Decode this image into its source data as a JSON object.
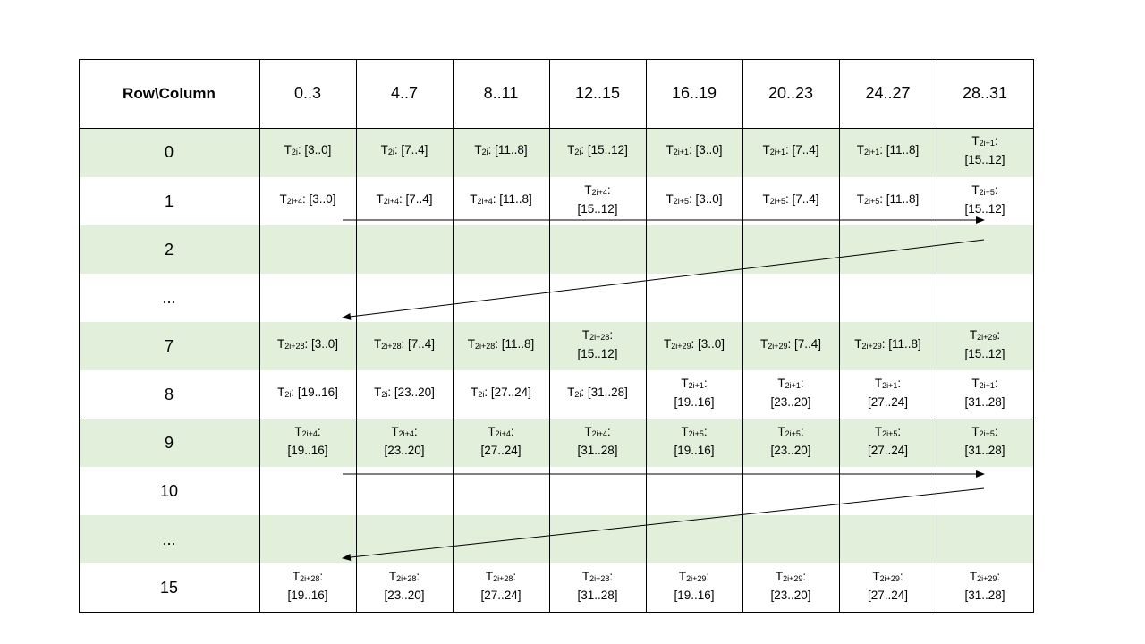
{
  "header": {
    "corner": "Row\\Column",
    "columns": [
      "0..3",
      "4..7",
      "8..11",
      "12..15",
      "16..19",
      "20..23",
      "24..27",
      "28..31"
    ]
  },
  "colors": {
    "green_row": "#e2efda",
    "white_row": "#ffffff",
    "line": "#000000"
  },
  "rows": [
    {
      "label": "0",
      "shaded": true,
      "cells": [
        [
          "2i",
          ": [3..0]",
          false
        ],
        [
          "2i",
          ": [7..4]",
          false
        ],
        [
          "2i",
          ": [11..8]",
          false
        ],
        [
          "2i",
          ": [15..12]",
          false
        ],
        [
          "2i+1",
          ": [3..0]",
          false
        ],
        [
          "2i+1",
          ": [7..4]",
          false
        ],
        [
          "2i+1",
          ": [11..8]",
          false
        ],
        [
          "2i+1",
          ": [15..12]",
          true
        ]
      ]
    },
    {
      "label": "1",
      "shaded": false,
      "cells": [
        [
          "2i+4",
          ": [3..0]",
          false
        ],
        [
          "2i+4",
          ": [7..4]",
          false
        ],
        [
          "2i+4",
          ": [11..8]",
          false
        ],
        [
          "2i+4",
          ": [15..12]",
          true
        ],
        [
          "2i+5",
          ": [3..0]",
          false
        ],
        [
          "2i+5",
          ": [7..4]",
          false
        ],
        [
          "2i+5",
          ": [11..8]",
          false
        ],
        [
          "2i+5",
          ": [15..12]",
          true
        ]
      ]
    },
    {
      "label": "2",
      "shaded": true,
      "cells": []
    },
    {
      "label": "...",
      "shaded": false,
      "cells": []
    },
    {
      "label": "7",
      "shaded": true,
      "cells": [
        [
          "2i+28",
          ": [3..0]",
          false
        ],
        [
          "2i+28",
          ": [7..4]",
          false
        ],
        [
          "2i+28",
          ": [11..8]",
          false
        ],
        [
          "2i+28",
          ": [15..12]",
          true
        ],
        [
          "2i+29",
          ": [3..0]",
          false
        ],
        [
          "2i+29",
          ": [7..4]",
          false
        ],
        [
          "2i+29",
          ": [11..8]",
          false
        ],
        [
          "2i+29",
          ": [15..12]",
          true
        ]
      ]
    },
    {
      "label": "8",
      "shaded": false,
      "cells": [
        [
          "2i",
          ": [19..16]",
          false
        ],
        [
          "2i",
          ": [23..20]",
          false
        ],
        [
          "2i",
          ": [27..24]",
          false
        ],
        [
          "2i",
          ": [31..28]",
          false
        ],
        [
          "2i+1",
          ": [19..16]",
          true
        ],
        [
          "2i+1",
          ": [23..20]",
          true
        ],
        [
          "2i+1",
          ": [27..24]",
          true
        ],
        [
          "2i+1",
          ": [31..28]",
          true
        ]
      ]
    },
    {
      "label": "9",
      "shaded": true,
      "cells": [
        [
          "2i+4",
          ": [19..16]",
          true
        ],
        [
          "2i+4",
          ": [23..20]",
          true
        ],
        [
          "2i+4",
          ": [27..24]",
          true
        ],
        [
          "2i+4",
          ": [31..28]",
          true
        ],
        [
          "2i+5",
          ": [19..16]",
          true
        ],
        [
          "2i+5",
          ": [23..20]",
          true
        ],
        [
          "2i+5",
          ": [27..24]",
          true
        ],
        [
          "2i+5",
          ": [31..28]",
          true
        ]
      ]
    },
    {
      "label": "10",
      "shaded": false,
      "cells": []
    },
    {
      "label": "...",
      "shaded": true,
      "cells": []
    },
    {
      "label": "15",
      "shaded": false,
      "cells": [
        [
          "2i+28",
          ": [19..16]",
          true
        ],
        [
          "2i+28",
          ": [23..20]",
          true
        ],
        [
          "2i+28",
          ": [27..24]",
          true
        ],
        [
          "2i+28",
          ": [31..28]",
          true
        ],
        [
          "2i+29",
          ": [19..16]",
          true
        ],
        [
          "2i+29",
          ": [23..20]",
          true
        ],
        [
          "2i+29",
          ": [27..24]",
          true
        ],
        [
          "2i+29",
          ": [31..28]",
          true
        ]
      ]
    }
  ],
  "cell_prefix": "T"
}
